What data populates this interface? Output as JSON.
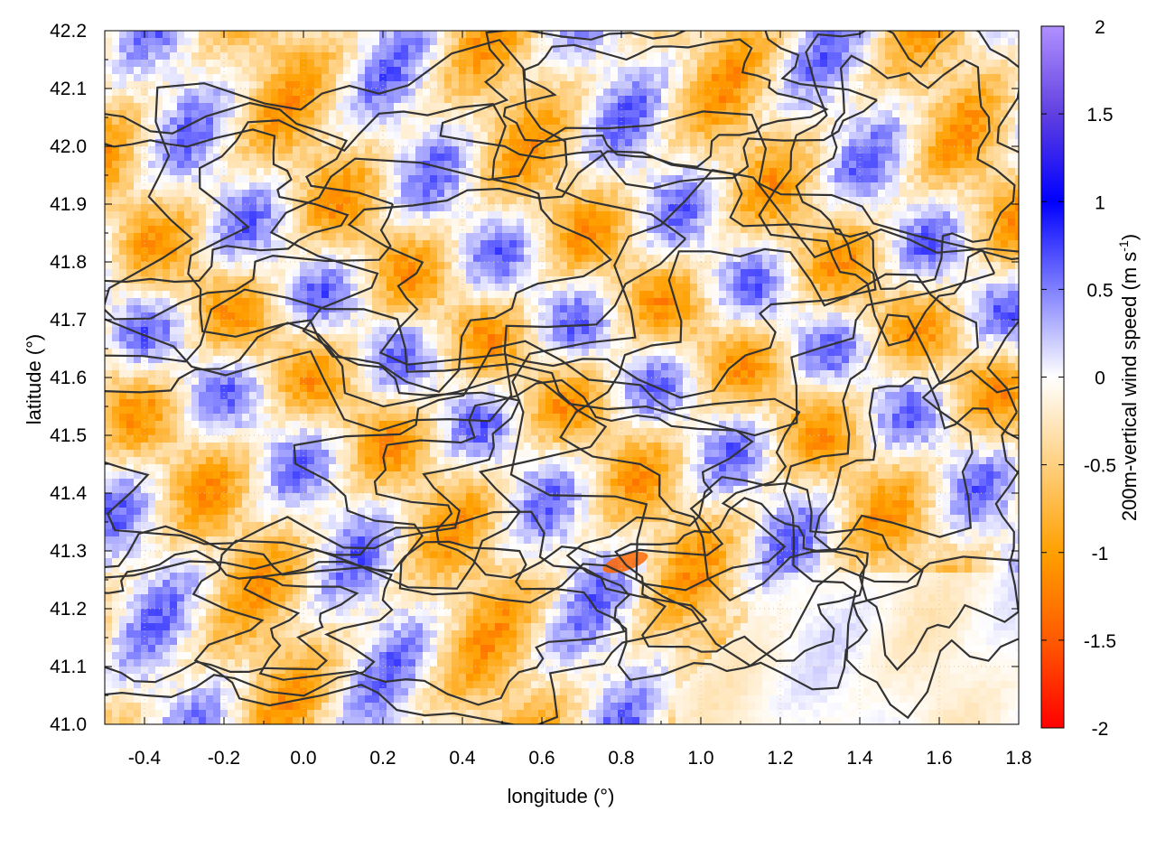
{
  "chart_data": {
    "type": "heatmap",
    "title": "",
    "xlabel": "longitude (°)",
    "ylabel": "latitude (°)",
    "colorbar_label": "200m-vertical wind speed (m s",
    "colorbar_label_superscript": "-1",
    "colorbar_label_suffix": ")",
    "xlim": [
      -0.5,
      1.8
    ],
    "ylim": [
      41.0,
      42.2
    ],
    "zlim": [
      -2,
      2
    ],
    "x_ticks": [
      "-0.4",
      "-0.2",
      "0.0",
      "0.2",
      "0.4",
      "0.6",
      "0.8",
      "1.0",
      "1.2",
      "1.4",
      "1.6",
      "1.8"
    ],
    "x_tick_values": [
      -0.4,
      -0.2,
      0.0,
      0.2,
      0.4,
      0.6,
      0.8,
      1.0,
      1.2,
      1.4,
      1.6,
      1.8
    ],
    "y_ticks": [
      "41.0",
      "41.1",
      "41.2",
      "41.3",
      "41.4",
      "41.5",
      "41.6",
      "41.7",
      "41.8",
      "41.9",
      "42.0",
      "42.1",
      "42.2"
    ],
    "y_tick_values": [
      41.0,
      41.1,
      41.2,
      41.3,
      41.4,
      41.5,
      41.6,
      41.7,
      41.8,
      41.9,
      42.0,
      42.1,
      42.2
    ],
    "colorbar_ticks": [
      "2",
      "1.5",
      "1",
      "0.5",
      "0",
      "-0.5",
      "-1",
      "-1.5",
      "-2"
    ],
    "colorbar_tick_values": [
      2,
      1.5,
      1,
      0.5,
      0,
      -0.5,
      -1,
      -1.5,
      -2
    ],
    "colormap": [
      {
        "value": -2.0,
        "color": "#ff0000"
      },
      {
        "value": -1.5,
        "color": "#ff5a00"
      },
      {
        "value": -1.0,
        "color": "#ffa000"
      },
      {
        "value": -0.5,
        "color": "#ffd080"
      },
      {
        "value": 0.0,
        "color": "#ffffff"
      },
      {
        "value": 0.5,
        "color": "#8080ff"
      },
      {
        "value": 1.0,
        "color": "#0000ff"
      },
      {
        "value": 1.5,
        "color": "#6040e0"
      },
      {
        "value": 2.0,
        "color": "#b090ff"
      }
    ],
    "grid": true,
    "contour_color": "#333333",
    "strong_downdraft_center": {
      "x": 0.81,
      "y": 41.28,
      "value": -1.4
    }
  }
}
